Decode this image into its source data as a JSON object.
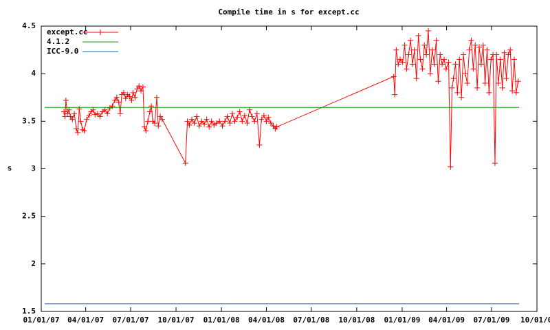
{
  "chart_data": {
    "type": "line",
    "title": "Compile time in s for except.cc",
    "y_label": "s",
    "xlim": [
      "2007-01-01",
      "2009-10-01"
    ],
    "xticks": [
      {
        "value": "2007-01-01",
        "label": "01/01/07"
      },
      {
        "value": "2007-04-01",
        "label": "04/01/07"
      },
      {
        "value": "2007-07-01",
        "label": "07/01/07"
      },
      {
        "value": "2007-10-01",
        "label": "10/01/07"
      },
      {
        "value": "2008-01-01",
        "label": "01/01/08"
      },
      {
        "value": "2008-04-01",
        "label": "04/01/08"
      },
      {
        "value": "2008-07-01",
        "label": "07/01/08"
      },
      {
        "value": "2008-10-01",
        "label": "10/01/08"
      },
      {
        "value": "2009-01-01",
        "label": "01/01/09"
      },
      {
        "value": "2009-04-01",
        "label": "04/01/09"
      },
      {
        "value": "2009-07-01",
        "label": "07/01/09"
      },
      {
        "value": "2009-10-01",
        "label": "10/01/0"
      }
    ],
    "ylim": [
      1.5,
      4.5
    ],
    "yticks": [
      1.5,
      2,
      2.5,
      3,
      3.5,
      4,
      4.5
    ],
    "legend": "top-left",
    "grid": false,
    "series": [
      {
        "name": "except.cc",
        "color": "#ff0000",
        "marker": "plus",
        "x": [
          "2007-02-16",
          "2007-02-18",
          "2007-02-20",
          "2007-02-23",
          "2007-02-26",
          "2007-03-01",
          "2007-03-05",
          "2007-03-09",
          "2007-03-13",
          "2007-03-16",
          "2007-03-19",
          "2007-03-22",
          "2007-03-26",
          "2007-03-29",
          "2007-04-03",
          "2007-04-08",
          "2007-04-12",
          "2007-04-16",
          "2007-04-20",
          "2007-04-25",
          "2007-04-30",
          "2007-05-05",
          "2007-05-10",
          "2007-05-15",
          "2007-05-20",
          "2007-05-25",
          "2007-05-30",
          "2007-06-03",
          "2007-06-07",
          "2007-06-10",
          "2007-06-13",
          "2007-06-17",
          "2007-06-21",
          "2007-06-25",
          "2007-06-29",
          "2007-07-03",
          "2007-07-06",
          "2007-07-10",
          "2007-07-14",
          "2007-07-18",
          "2007-07-22",
          "2007-07-26",
          "2007-07-29",
          "2007-08-01",
          "2007-08-05",
          "2007-08-09",
          "2007-08-12",
          "2007-08-15",
          "2007-08-19",
          "2007-08-23",
          "2007-08-26",
          "2007-08-30",
          "2007-09-03",
          "2007-10-20",
          "2007-10-24",
          "2007-10-28",
          "2007-11-02",
          "2007-11-07",
          "2007-11-12",
          "2007-11-17",
          "2007-11-22",
          "2007-11-27",
          "2007-12-02",
          "2007-12-07",
          "2007-12-12",
          "2007-12-17",
          "2007-12-22",
          "2007-12-28",
          "2008-01-03",
          "2008-01-08",
          "2008-01-13",
          "2008-01-18",
          "2008-01-23",
          "2008-01-28",
          "2008-02-02",
          "2008-02-07",
          "2008-02-12",
          "2008-02-17",
          "2008-02-22",
          "2008-02-27",
          "2008-03-03",
          "2008-03-08",
          "2008-03-13",
          "2008-03-18",
          "2008-03-22",
          "2008-03-27",
          "2008-04-01",
          "2008-04-05",
          "2008-04-10",
          "2008-04-15",
          "2008-04-19",
          "2008-04-22",
          "2008-12-15",
          "2008-12-17",
          "2008-12-20",
          "2008-12-24",
          "2008-12-28",
          "2009-01-02",
          "2009-01-06",
          "2009-01-10",
          "2009-01-14",
          "2009-01-18",
          "2009-01-22",
          "2009-01-26",
          "2009-01-30",
          "2009-02-03",
          "2009-02-07",
          "2009-02-11",
          "2009-02-15",
          "2009-02-19",
          "2009-02-23",
          "2009-02-27",
          "2009-03-03",
          "2009-03-07",
          "2009-03-11",
          "2009-03-15",
          "2009-03-19",
          "2009-03-23",
          "2009-03-27",
          "2009-03-31",
          "2009-04-05",
          "2009-04-09",
          "2009-04-12",
          "2009-04-15",
          "2009-04-19",
          "2009-04-23",
          "2009-04-27",
          "2009-05-01",
          "2009-05-05",
          "2009-05-09",
          "2009-05-13",
          "2009-05-17",
          "2009-05-21",
          "2009-05-25",
          "2009-05-29",
          "2009-06-02",
          "2009-06-06",
          "2009-06-10",
          "2009-06-14",
          "2009-06-18",
          "2009-06-22",
          "2009-06-26",
          "2009-06-30",
          "2009-07-04",
          "2009-07-08",
          "2009-07-11",
          "2009-07-15",
          "2009-07-19",
          "2009-07-23",
          "2009-07-27",
          "2009-07-31",
          "2009-08-04",
          "2009-08-08",
          "2009-08-12",
          "2009-08-16",
          "2009-08-20",
          "2009-08-24"
        ],
        "values": [
          3.6,
          3.55,
          3.72,
          3.58,
          3.62,
          3.55,
          3.52,
          3.58,
          3.42,
          3.38,
          3.63,
          3.5,
          3.41,
          3.4,
          3.52,
          3.56,
          3.6,
          3.62,
          3.57,
          3.58,
          3.55,
          3.6,
          3.62,
          3.58,
          3.64,
          3.66,
          3.72,
          3.75,
          3.7,
          3.58,
          3.78,
          3.8,
          3.74,
          3.78,
          3.76,
          3.72,
          3.8,
          3.75,
          3.84,
          3.87,
          3.82,
          3.86,
          3.44,
          3.4,
          3.5,
          3.6,
          3.66,
          3.5,
          3.48,
          3.75,
          3.45,
          3.55,
          3.52,
          3.06,
          3.5,
          3.46,
          3.52,
          3.48,
          3.55,
          3.45,
          3.5,
          3.47,
          3.52,
          3.44,
          3.5,
          3.46,
          3.48,
          3.5,
          3.45,
          3.5,
          3.55,
          3.48,
          3.58,
          3.5,
          3.54,
          3.6,
          3.5,
          3.56,
          3.48,
          3.62,
          3.55,
          3.5,
          3.58,
          3.25,
          3.52,
          3.56,
          3.5,
          3.54,
          3.48,
          3.45,
          3.42,
          3.44,
          3.97,
          3.78,
          4.25,
          4.1,
          4.15,
          4.12,
          4.3,
          4.05,
          4.2,
          4.35,
          4.1,
          4.25,
          3.95,
          4.4,
          4.15,
          4.05,
          4.3,
          4.2,
          4.45,
          4.0,
          4.25,
          4.1,
          4.35,
          3.92,
          4.2,
          4.1,
          4.15,
          4.05,
          4.12,
          3.02,
          3.85,
          3.95,
          4.1,
          3.8,
          4.15,
          3.75,
          4.2,
          4.0,
          3.9,
          4.25,
          4.35,
          4.05,
          4.3,
          3.85,
          4.28,
          4.1,
          4.3,
          3.9,
          4.25,
          3.8,
          4.15,
          4.2,
          3.06,
          4.2,
          3.9,
          4.15,
          3.85,
          4.22,
          3.95,
          4.2,
          4.25,
          3.82,
          4.15,
          3.8,
          3.92
        ]
      },
      {
        "name": "4.1.2",
        "color": "#00a000",
        "marker": "none",
        "x": [
          "2007-01-08",
          "2009-08-26"
        ],
        "values": [
          3.645,
          3.645
        ]
      },
      {
        "name": "ICC-9.0",
        "color": "#0070c0",
        "marker": "none",
        "x": [
          "2007-01-08",
          "2009-08-26"
        ],
        "values": [
          1.58,
          1.58
        ]
      }
    ]
  }
}
